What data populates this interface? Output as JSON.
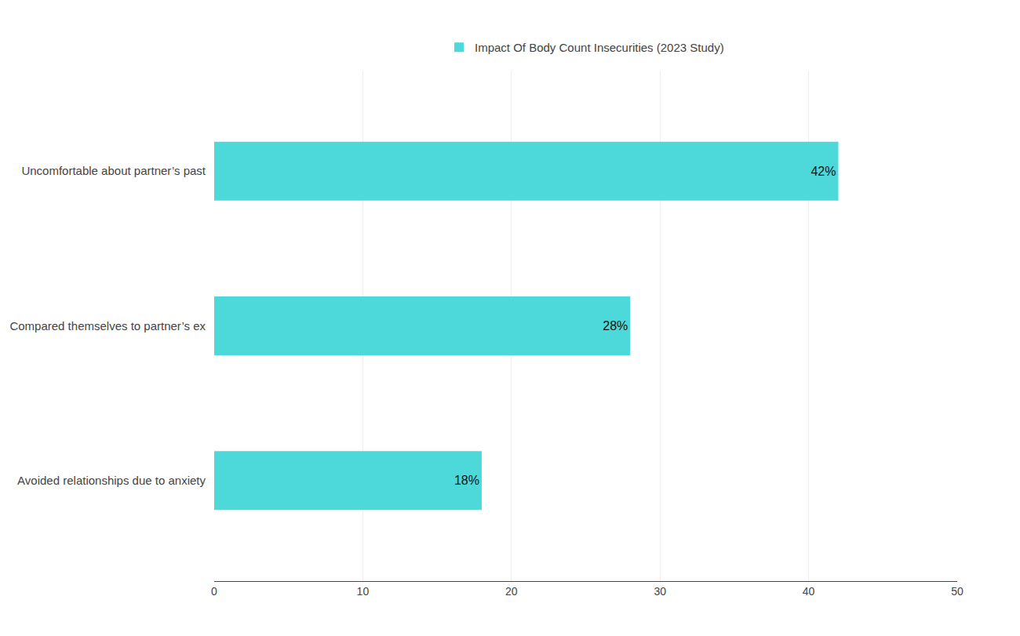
{
  "chart_data": {
    "type": "bar",
    "orientation": "horizontal",
    "categories": [
      "Avoided relationships due to anxiety",
      "Compared themselves to partner’s ex",
      "Uncomfortable about partner’s past"
    ],
    "series": [
      {
        "name": "Impact Of Body Count Insecurities (2023 Study)",
        "color": "#4DD9D9",
        "values": [
          18,
          28,
          42
        ],
        "value_labels": [
          "18%",
          "28%",
          "42%"
        ]
      }
    ],
    "xlim": [
      0,
      50
    ],
    "xticks": [
      0,
      10,
      20,
      30,
      40,
      50
    ],
    "grid": true,
    "legend": "top",
    "data_labels": true
  }
}
